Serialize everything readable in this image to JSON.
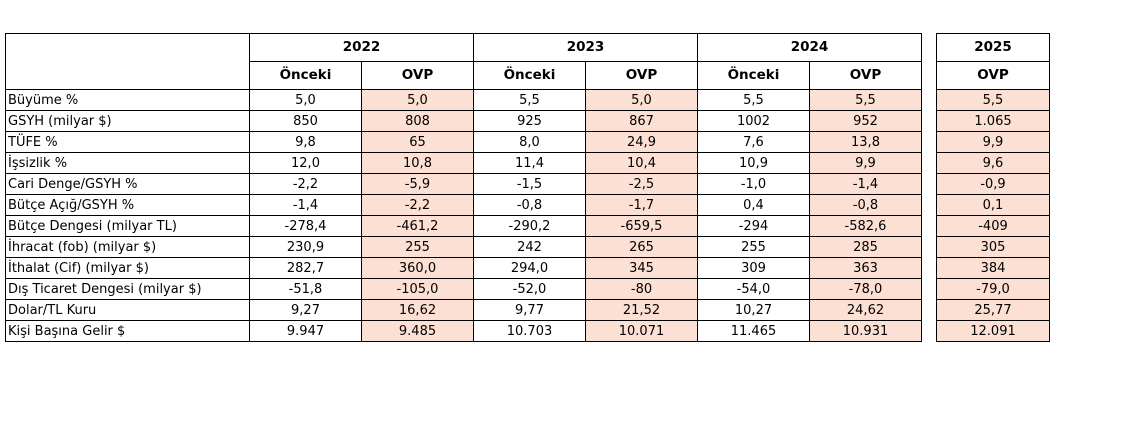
{
  "years": [
    "2022",
    "2023",
    "2024"
  ],
  "year_2025": "2025",
  "sub_onceki": "Önceki",
  "sub_ovp": "OVP",
  "rows": [
    {
      "label": "Büyüme %",
      "v": [
        "5,0",
        "5,0",
        "5,5",
        "5,0",
        "5,5",
        "5,5"
      ],
      "y2025": "5,5"
    },
    {
      "label": "GSYH (milyar $)",
      "v": [
        "850",
        "808",
        "925",
        "867",
        "1002",
        "952"
      ],
      "y2025": "1.065"
    },
    {
      "label": "TÜFE %",
      "v": [
        "9,8",
        "65",
        "8,0",
        "24,9",
        "7,6",
        "13,8"
      ],
      "y2025": "9,9"
    },
    {
      "label": "İşsizlik %",
      "v": [
        "12,0",
        "10,8",
        "11,4",
        "10,4",
        "10,9",
        "9,9"
      ],
      "y2025": "9,6"
    },
    {
      "label": "Cari Denge/GSYH %",
      "v": [
        "-2,2",
        "-5,9",
        "-1,5",
        "-2,5",
        "-1,0",
        "-1,4"
      ],
      "y2025": "-0,9"
    },
    {
      "label": "Bütçe Açığ/GSYH %",
      "v": [
        "-1,4",
        "-2,2",
        "-0,8",
        "-1,7",
        "0,4",
        "-0,8"
      ],
      "y2025": "0,1"
    },
    {
      "label": "Bütçe Dengesi (milyar TL)",
      "v": [
        "-278,4",
        "-461,2",
        "-290,2",
        "-659,5",
        "-294",
        "-582,6"
      ],
      "y2025": "-409"
    },
    {
      "label": "İhracat (fob) (milyar $)",
      "v": [
        "230,9",
        "255",
        "242",
        "265",
        "255",
        "285"
      ],
      "y2025": "305"
    },
    {
      "label": "İthalat (Cif) (milyar $)",
      "v": [
        "282,7",
        "360,0",
        "294,0",
        "345",
        "309",
        "363"
      ],
      "y2025": "384"
    },
    {
      "label": "Dış Ticaret Dengesi (milyar $)",
      "v": [
        "-51,8",
        "-105,0",
        "-52,0",
        "-80",
        "-54,0",
        "-78,0"
      ],
      "y2025": "-79,0"
    },
    {
      "label": "Dolar/TL Kuru",
      "v": [
        "9,27",
        "16,62",
        "9,77",
        "21,52",
        "10,27",
        "24,62"
      ],
      "y2025": "25,77"
    },
    {
      "label": "Kişi Başına Gelir $",
      "v": [
        "9.947",
        "9.485",
        "10.703",
        "10.071",
        "11.465",
        "10.931"
      ],
      "y2025": "12.091"
    }
  ]
}
